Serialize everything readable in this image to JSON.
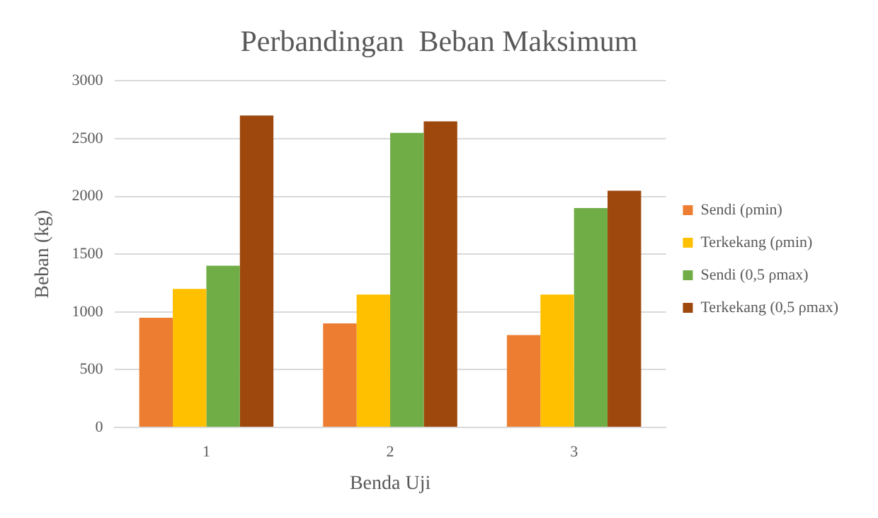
{
  "chart_data": {
    "type": "bar",
    "title": "Perbandingan  Beban Maksimum",
    "xlabel": "Benda Uji",
    "ylabel": "Beban (kg)",
    "categories": [
      "1",
      "2",
      "3"
    ],
    "series": [
      {
        "name": "Sendi (ρmin)",
        "color": "#ed7d31",
        "values": [
          950,
          900,
          800
        ]
      },
      {
        "name": "Terkekang (ρmin)",
        "color": "#ffc000",
        "values": [
          1200,
          1150,
          1150
        ]
      },
      {
        "name": "Sendi (0,5 ρmax)",
        "color": "#70ad47",
        "values": [
          1400,
          2550,
          1900
        ]
      },
      {
        "name": "Terkekang (0,5 ρmax)",
        "color": "#9e480e",
        "values": [
          2700,
          2650,
          2050
        ]
      }
    ],
    "ylim": [
      0,
      3000
    ],
    "yticks": [
      0,
      500,
      1000,
      1500,
      2000,
      2500,
      3000
    ],
    "grid": "y",
    "legend": "right"
  }
}
